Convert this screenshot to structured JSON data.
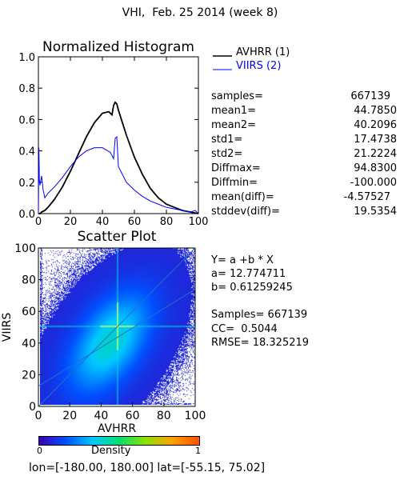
{
  "title": "VHI,  Feb. 25 2014 (week 8)",
  "colors": {
    "avhrr": "#000000",
    "viirs": "#0000ff",
    "fit": "#1f6fd0"
  },
  "histogram": {
    "title": "Normalized Histogram",
    "legend": [
      {
        "name": "AVHRR (1)",
        "color": "#000000"
      },
      {
        "name": "VIIRS (2)",
        "color": "#0000ff"
      }
    ],
    "stats": [
      {
        "label": "samples=",
        "value": "667139"
      },
      {
        "label": "mean1=",
        "value": "44.7850"
      },
      {
        "label": "mean2=",
        "value": "40.2096"
      },
      {
        "label": "std1=",
        "value": "17.4738"
      },
      {
        "label": "std2=",
        "value": "21.2224"
      },
      {
        "label": "Diffmax=",
        "value": "94.8300"
      },
      {
        "label": "Diffmin=",
        "value": "-100.000"
      },
      {
        "label": "mean(diff)=",
        "value": "-4.57527"
      },
      {
        "label": "stddev(diff)=",
        "value": "19.5354"
      }
    ]
  },
  "scatter": {
    "title": "Scatter Plot",
    "stats": [
      "Y= a +b * X",
      "a= 12.774711",
      "b= 0.61259245",
      "Samples= 667139",
      "CC=  0.5044",
      "RMSE= 18.325219"
    ],
    "colorbar": {
      "label": "Density",
      "min": "0",
      "max": "1"
    }
  },
  "footer": "lon=[-180.00, 180.00] lat=[-55.15, 75.02]",
  "chart_data": [
    {
      "type": "line",
      "title": "Normalized Histogram",
      "xlim": [
        0,
        100
      ],
      "ylim": [
        0,
        1.0
      ],
      "xticks": [
        "0",
        "20",
        "40",
        "60",
        "80",
        "100"
      ],
      "yticks": [
        "0.0",
        "0.2",
        "0.4",
        "0.6",
        "0.8",
        "1.0"
      ],
      "series": [
        {
          "name": "AVHRR (1)",
          "color": "#000000",
          "x": [
            0,
            1,
            2,
            4,
            6,
            10,
            15,
            20,
            25,
            30,
            35,
            40,
            44,
            46,
            47,
            48,
            49,
            50,
            55,
            60,
            65,
            70,
            75,
            80,
            85,
            90,
            95,
            100
          ],
          "y": [
            0.0,
            0.0,
            0.01,
            0.02,
            0.04,
            0.09,
            0.17,
            0.27,
            0.38,
            0.49,
            0.58,
            0.64,
            0.65,
            0.63,
            0.69,
            0.71,
            0.7,
            0.66,
            0.5,
            0.36,
            0.25,
            0.16,
            0.1,
            0.06,
            0.04,
            0.02,
            0.01,
            0.0
          ]
        },
        {
          "name": "VIIRS (2)",
          "color": "#0000ff",
          "x": [
            0,
            0.3,
            0.6,
            1,
            2,
            3,
            4,
            6,
            10,
            15,
            20,
            25,
            30,
            35,
            40,
            45,
            47,
            48,
            49,
            50,
            55,
            60,
            65,
            70,
            75,
            80,
            85,
            90,
            95,
            98,
            100
          ],
          "y": [
            0.0,
            0.42,
            0.22,
            0.18,
            0.24,
            0.15,
            0.1,
            0.13,
            0.17,
            0.23,
            0.3,
            0.36,
            0.4,
            0.42,
            0.42,
            0.39,
            0.35,
            0.48,
            0.49,
            0.3,
            0.2,
            0.15,
            0.11,
            0.08,
            0.06,
            0.04,
            0.03,
            0.02,
            0.01,
            0.02,
            0.0
          ]
        }
      ]
    },
    {
      "type": "scatter",
      "title": "Scatter Plot",
      "xlabel": "AVHRR",
      "ylabel": "VIIRS",
      "xlim": [
        0,
        100
      ],
      "ylim": [
        0,
        100
      ],
      "xticks": [
        "0",
        "20",
        "40",
        "60",
        "80",
        "100"
      ],
      "yticks": [
        "0",
        "20",
        "40",
        "60",
        "80",
        "100"
      ],
      "density_center": [
        45,
        40
      ],
      "fit_line": {
        "intercept": 12.774711,
        "slope": 0.61259245
      },
      "colorscale": [
        "#3c00b4",
        "#0050ff",
        "#00c8ff",
        "#00e070",
        "#90e000",
        "#ffa000",
        "#ff5000"
      ]
    }
  ]
}
